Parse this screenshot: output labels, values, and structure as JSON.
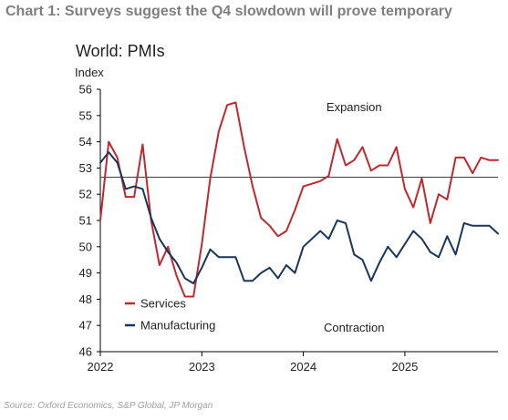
{
  "page": {
    "title": "Chart 1: Surveys suggest the Q4 slowdown will prove temporary",
    "source": "Source: Oxford Economics, S&P Global, JP Morgan"
  },
  "colors": {
    "services": "#c0282c",
    "manufacturing": "#16365c",
    "reference": "#404040",
    "axis": "#000000",
    "title": "#7f7f7f",
    "source": "#a0a0a0"
  },
  "chart_data": {
    "type": "line",
    "title": "World: PMIs",
    "ylabel": "Index",
    "ylim": [
      46,
      56
    ],
    "yticks": [
      46,
      47,
      48,
      49,
      50,
      51,
      52,
      53,
      54,
      55,
      56
    ],
    "xlim": [
      2022.0,
      2025.917
    ],
    "xticks": [
      {
        "value": 2022,
        "label": "2022"
      },
      {
        "value": 2023,
        "label": "2023"
      },
      {
        "value": 2024,
        "label": "2024"
      },
      {
        "value": 2025,
        "label": "2025"
      }
    ],
    "grid": false,
    "legend": "bottom-left",
    "reference_line": 52.65,
    "annotations": [
      {
        "text": "Expansion",
        "x": 2024.5,
        "y": 55.3
      },
      {
        "text": "Contraction",
        "x": 2024.5,
        "y": 46.9
      }
    ],
    "series": [
      {
        "name": "Services",
        "color": "#c0282c",
        "x": [
          2022.0,
          2022.083,
          2022.167,
          2022.25,
          2022.333,
          2022.417,
          2022.5,
          2022.583,
          2022.667,
          2022.75,
          2022.833,
          2022.917,
          2023.0,
          2023.083,
          2023.167,
          2023.25,
          2023.333,
          2023.417,
          2023.5,
          2023.583,
          2023.667,
          2023.75,
          2023.833,
          2023.917,
          2024.0,
          2024.083,
          2024.167,
          2024.25,
          2024.333,
          2024.417,
          2024.5,
          2024.583,
          2024.667,
          2024.75,
          2024.833,
          2024.917,
          2025.0,
          2025.083,
          2025.167,
          2025.25,
          2025.333,
          2025.417,
          2025.5,
          2025.583,
          2025.667,
          2025.75,
          2025.833,
          2025.917
        ],
        "values": [
          51.0,
          54.0,
          53.4,
          51.9,
          51.9,
          53.9,
          51.0,
          49.3,
          50.0,
          48.9,
          48.1,
          48.1,
          50.1,
          52.6,
          54.4,
          55.4,
          55.5,
          53.8,
          52.3,
          51.1,
          50.8,
          50.4,
          50.6,
          51.4,
          52.3,
          52.4,
          52.5,
          52.7,
          54.1,
          53.1,
          53.3,
          53.8,
          52.9,
          53.1,
          53.1,
          53.8,
          52.2,
          51.5,
          52.6,
          50.9,
          52.0,
          51.8,
          53.4,
          53.4,
          52.8,
          53.4,
          53.3,
          53.3
        ]
      },
      {
        "name": "Manufacturing",
        "color": "#16365c",
        "x": [
          2022.0,
          2022.083,
          2022.167,
          2022.25,
          2022.333,
          2022.417,
          2022.5,
          2022.583,
          2022.667,
          2022.75,
          2022.833,
          2022.917,
          2023.0,
          2023.083,
          2023.167,
          2023.25,
          2023.333,
          2023.417,
          2023.5,
          2023.583,
          2023.667,
          2023.75,
          2023.833,
          2023.917,
          2024.0,
          2024.083,
          2024.167,
          2024.25,
          2024.333,
          2024.417,
          2024.5,
          2024.583,
          2024.667,
          2024.75,
          2024.833,
          2024.917,
          2025.0,
          2025.083,
          2025.167,
          2025.25,
          2025.333,
          2025.417,
          2025.5,
          2025.583,
          2025.667,
          2025.75,
          2025.833,
          2025.917
        ],
        "values": [
          53.2,
          53.6,
          53.2,
          52.2,
          52.3,
          52.2,
          51.1,
          50.3,
          49.8,
          49.4,
          48.8,
          48.6,
          49.2,
          49.9,
          49.6,
          49.6,
          49.6,
          48.7,
          48.7,
          49.0,
          49.2,
          48.8,
          49.3,
          49.0,
          50.0,
          50.3,
          50.6,
          50.3,
          51.0,
          50.9,
          49.7,
          49.5,
          48.7,
          49.4,
          50.0,
          49.6,
          50.1,
          50.6,
          50.3,
          49.8,
          49.6,
          50.4,
          49.7,
          50.9,
          50.8,
          50.8,
          50.8,
          50.5
        ]
      }
    ]
  }
}
